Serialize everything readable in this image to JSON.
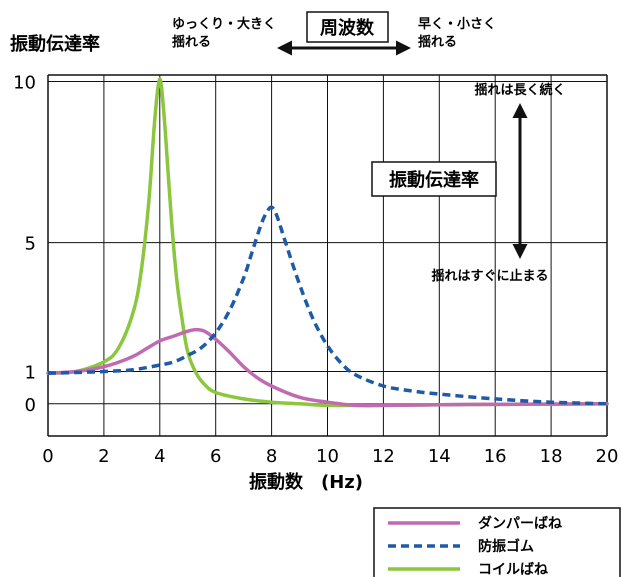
{
  "chart_data": {
    "type": "line",
    "ylabel": "振動伝達率",
    "xlabel": "振動数　(Hz)",
    "x_ticks": [
      "0",
      "2",
      "4",
      "6",
      "8",
      "10",
      "12",
      "14",
      "16",
      "18",
      "20"
    ],
    "y_ticks": [
      {
        "value": 0,
        "label": "0"
      },
      {
        "value": 1,
        "label": "1"
      },
      {
        "value": 5,
        "label": "5"
      },
      {
        "value": 10,
        "label": "10"
      }
    ],
    "xlim": [
      0,
      20
    ],
    "ylim": [
      -1,
      10.2
    ],
    "grid": true,
    "legend_position": "bottom-right",
    "series": [
      {
        "name": "ダンパーばね",
        "color": "#c06bb0",
        "dash": "solid",
        "x": [
          0,
          1,
          2,
          3,
          3.5,
          4,
          4.5,
          5,
          5.3,
          5.6,
          6,
          6.5,
          7,
          7.5,
          8,
          9,
          10,
          11,
          12,
          14,
          16,
          18,
          20
        ],
        "y": [
          0.95,
          1.0,
          1.15,
          1.45,
          1.7,
          1.95,
          2.1,
          2.25,
          2.3,
          2.25,
          2.0,
          1.6,
          1.15,
          0.8,
          0.55,
          0.2,
          0.05,
          -0.05,
          -0.05,
          -0.03,
          -0.02,
          -0.01,
          0
        ]
      },
      {
        "name": "防振ゴム",
        "color": "#1e5aa8",
        "dash": "dashed",
        "x": [
          0,
          1,
          2,
          3,
          4,
          4.5,
          5,
          5.5,
          6,
          6.5,
          7,
          7.3,
          7.6,
          7.8,
          8,
          8.2,
          8.5,
          9,
          9.5,
          10,
          10.5,
          11,
          12,
          13,
          14,
          16,
          18,
          20
        ],
        "y": [
          0.95,
          0.97,
          1.0,
          1.05,
          1.2,
          1.3,
          1.5,
          1.75,
          2.2,
          2.9,
          3.9,
          4.7,
          5.5,
          5.9,
          6.1,
          5.8,
          5.0,
          3.7,
          2.6,
          1.8,
          1.25,
          0.9,
          0.55,
          0.4,
          0.3,
          0.15,
          0.05,
          0
        ]
      },
      {
        "name": "コイルばね",
        "color": "#8cc63f",
        "dash": "solid",
        "x": [
          0,
          1,
          2,
          2.5,
          3,
          3.3,
          3.6,
          3.8,
          3.95,
          4.05,
          4.2,
          4.4,
          4.6,
          4.8,
          5,
          5.3,
          5.6,
          6,
          7,
          8,
          9,
          10,
          11,
          12,
          14,
          16,
          18,
          20
        ],
        "y": [
          0.95,
          1.0,
          1.3,
          1.7,
          2.7,
          3.9,
          6.2,
          8.6,
          9.9,
          9.9,
          8.4,
          5.9,
          3.9,
          2.6,
          1.6,
          0.95,
          0.6,
          0.35,
          0.15,
          0.05,
          0,
          -0.05,
          -0.05,
          -0.05,
          -0.03,
          -0.02,
          -0.01,
          0
        ]
      }
    ],
    "annotations": {
      "frequency_label": "周波数",
      "slow_large_line1": "ゆっくり・大きく",
      "slow_large_line2": "揺れる",
      "fast_small_line1": "早く・小さく",
      "fast_small_line2": "揺れる",
      "transmissibility_label": "振動伝達率",
      "long_shaking": "揺れは長く続く",
      "stops_quickly": "揺れはすぐに止まる"
    }
  }
}
